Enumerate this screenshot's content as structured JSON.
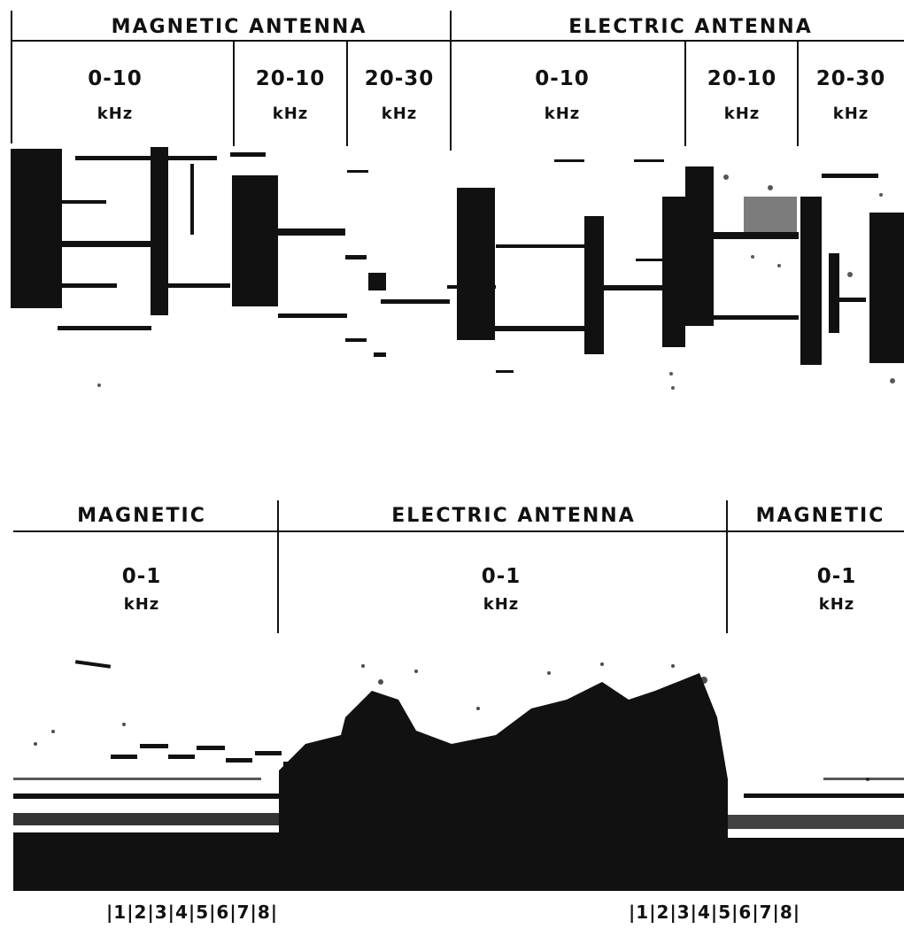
{
  "top_panel": {
    "groups": [
      {
        "label": "MAGNETIC ANTENNA"
      },
      {
        "label": "ELECTRIC ANTENNA"
      }
    ],
    "bands": [
      {
        "range": "0-10",
        "unit": "kHz"
      },
      {
        "range": "20-10",
        "unit": "kHz"
      },
      {
        "range": "20-30",
        "unit": "kHz"
      },
      {
        "range": "0-10",
        "unit": "kHz"
      },
      {
        "range": "20-10",
        "unit": "kHz"
      },
      {
        "range": "20-30",
        "unit": "kHz"
      }
    ]
  },
  "bottom_panel": {
    "sections": [
      {
        "label": "MAGNETIC",
        "range": "0-1",
        "unit": "kHz"
      },
      {
        "label": "ELECTRIC ANTENNA",
        "range": "0-1",
        "unit": "kHz"
      },
      {
        "label": "MAGNETIC",
        "range": "0-1",
        "unit": "kHz"
      }
    ],
    "time_markers_left": "|1|2|3|4|5|6|7|8|",
    "time_markers_right": "|1|2|3|4|5|6|7|8|"
  },
  "colors": {
    "ink": "#111111",
    "paper": "#ffffff"
  }
}
